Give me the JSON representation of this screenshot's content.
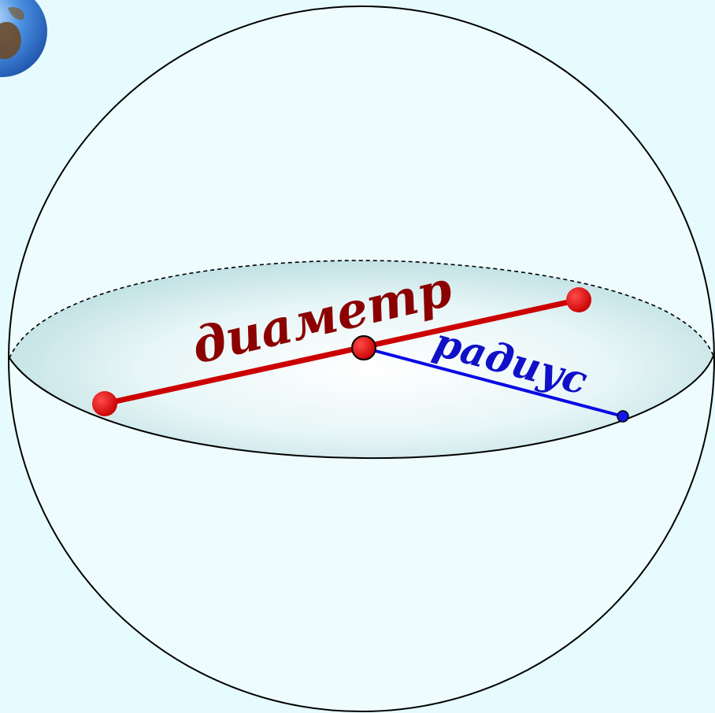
{
  "labels": {
    "diameter": "диаметр",
    "radius": "радиус"
  },
  "colors": {
    "background": "#e6fbfd",
    "diameter": "#cc0000",
    "diameter_text": "#8b0000",
    "radius": "#0a0ae6",
    "radius_text": "#1010c8",
    "outline": "#000000",
    "equator_fill": "#c9e4e6"
  },
  "icons": {
    "corner": "globe-icon"
  }
}
